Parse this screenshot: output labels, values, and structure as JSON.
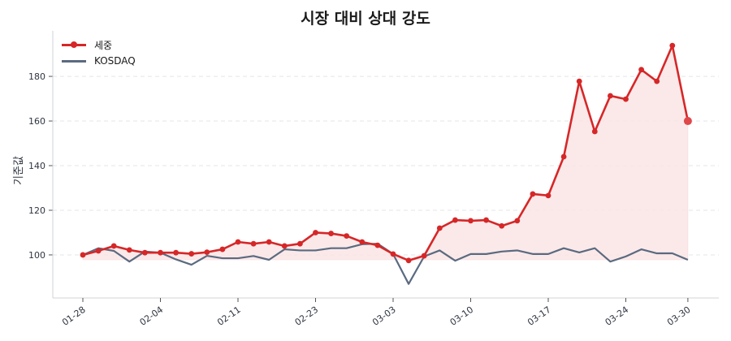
{
  "chart_data": {
    "type": "line",
    "title": "시장 대비 상대 강도",
    "xlabel": "",
    "ylabel": "기준값",
    "ylim": [
      80.7,
      200.4
    ],
    "yticks": [
      100,
      120,
      140,
      160,
      180
    ],
    "grid": {
      "y": true,
      "x": false,
      "style": "dashed"
    },
    "legend_position": "upper left",
    "x_count": 40,
    "xticks": [
      {
        "index": 0,
        "label": "01-28"
      },
      {
        "index": 5,
        "label": "02-04"
      },
      {
        "index": 10,
        "label": "02-11"
      },
      {
        "index": 15,
        "label": "02-23"
      },
      {
        "index": 20,
        "label": "03-03"
      },
      {
        "index": 25,
        "label": "03-10"
      },
      {
        "index": 30,
        "label": "03-17"
      },
      {
        "index": 35,
        "label": "03-24"
      },
      {
        "index": 39,
        "label": "03-30"
      }
    ],
    "fill_baseline": 97.8,
    "series": [
      {
        "name": "세중",
        "color": "#d62728",
        "marker": "circle",
        "fill": "#fbe6e6",
        "values": [
          100,
          101.8,
          104,
          102.2,
          101,
          101,
          101,
          100.5,
          101.2,
          102.5,
          105.8,
          105,
          105.8,
          104,
          105,
          110,
          109.6,
          108.5,
          105.8,
          104.3,
          100.4,
          97.5,
          99.6,
          112,
          115.6,
          115.3,
          115.6,
          113,
          115.3,
          127.3,
          126.6,
          144,
          177.8,
          155.3,
          171.3,
          169.8,
          183,
          177.8,
          193.8,
          160
        ]
      },
      {
        "name": "KOSDAQ",
        "color": "#5a6a80",
        "marker": "none",
        "values": [
          100,
          103,
          101.8,
          97,
          101.5,
          101,
          98,
          95.6,
          99.6,
          98.5,
          98.5,
          99.5,
          97.8,
          102.5,
          102,
          102,
          103,
          103,
          104.8,
          105,
          100.4,
          87,
          99.3,
          102,
          97.4,
          100.4,
          100.4,
          101.5,
          102,
          100.4,
          100.4,
          103,
          101.1,
          103,
          97,
          99.3,
          102.5,
          100.7,
          100.7,
          97.8
        ]
      }
    ]
  }
}
